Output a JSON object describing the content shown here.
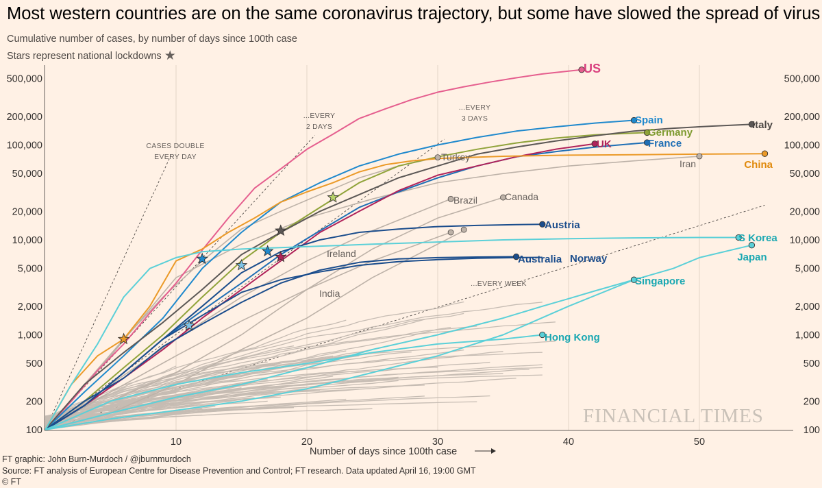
{
  "header": {
    "title": "Most western countries are on the same coronavirus trajectory, but some have slowed the spread of virus",
    "subtitle_line1": "Cumulative number of cases, by number of days since 100th case",
    "subtitle_line2": "Stars represent national lockdowns"
  },
  "footer": {
    "line1": "FT graphic: John Burn-Murdoch / @jburnmurdoch",
    "line2": "Source: FT analysis of European Centre for Disease Prevention and Control; FT research. Data updated April 16, 19:00 GMT",
    "line3": "© FT"
  },
  "watermark": "FINANCIAL TIMES",
  "chart_data": {
    "type": "line",
    "xlabel": "Number of days since 100th case",
    "ylabel": "",
    "xlim": [
      0,
      57
    ],
    "ylim": [
      100,
      700000
    ],
    "yscale": "log",
    "xticks": [
      10,
      20,
      30,
      40,
      50
    ],
    "yticks": [
      100,
      200,
      500,
      1000,
      2000,
      5000,
      10000,
      20000,
      50000,
      100000,
      200000,
      500000
    ],
    "ytick_labels": [
      "100",
      "200",
      "500",
      "1,000",
      "2,000",
      "5,000",
      "10,000",
      "20,000",
      "50,000",
      "100,000",
      "200,000",
      "500,000"
    ],
    "grid": "vertical",
    "reference_lines": [
      {
        "label_lines": [
          "CASES DOUBLE",
          "EVERY DAY"
        ],
        "doubling_days": 1
      },
      {
        "label_lines": [
          "...EVERY",
          "2 DAYS"
        ],
        "doubling_days": 2
      },
      {
        "label_lines": [
          "...EVERY",
          "3 DAYS"
        ],
        "doubling_days": 3
      },
      {
        "label_lines": [
          "...EVERY WEEK"
        ],
        "doubling_days": 7
      }
    ],
    "highlighted_series": [
      {
        "name": "US",
        "color": "#e55e8e",
        "label_color": "#d9417f",
        "x": [
          0,
          2,
          4,
          6,
          8,
          10,
          12,
          14,
          16,
          18,
          20,
          22,
          24,
          26,
          28,
          30,
          32,
          34,
          36,
          38,
          40,
          41
        ],
        "y": [
          100,
          200,
          420,
          800,
          1700,
          3500,
          7800,
          17000,
          35000,
          56000,
          90000,
          130000,
          190000,
          240000,
          300000,
          360000,
          410000,
          460000,
          510000,
          560000,
          600000,
          620000
        ]
      },
      {
        "name": "Spain",
        "color": "#1f89cd",
        "label_color": "#1f89cd",
        "x": [
          0,
          3,
          6,
          9,
          12,
          15,
          18,
          21,
          24,
          27,
          30,
          33,
          36,
          39,
          42,
          45
        ],
        "y": [
          100,
          250,
          600,
          1500,
          5000,
          12000,
          25000,
          40000,
          60000,
          80000,
          100000,
          120000,
          140000,
          155000,
          170000,
          182000
        ]
      },
      {
        "name": "Germany",
        "color": "#90a33a",
        "label_color": "#7d9a2f",
        "x": [
          0,
          3,
          6,
          9,
          12,
          15,
          18,
          21,
          24,
          27,
          30,
          33,
          36,
          39,
          42,
          46
        ],
        "y": [
          100,
          200,
          450,
          1000,
          2500,
          6000,
          12000,
          22000,
          40000,
          60000,
          75000,
          90000,
          105000,
          118000,
          128000,
          135000
        ]
      },
      {
        "name": "Italy",
        "color": "#5c5856",
        "label_color": "#4d4845",
        "x": [
          0,
          3,
          6,
          9,
          12,
          15,
          18,
          21,
          24,
          27,
          30,
          33,
          36,
          39,
          42,
          45,
          48,
          51,
          54
        ],
        "y": [
          100,
          300,
          650,
          1350,
          3000,
          7000,
          12000,
          20000,
          30000,
          45000,
          60000,
          80000,
          95000,
          110000,
          125000,
          140000,
          150000,
          158000,
          165000
        ]
      },
      {
        "name": "France",
        "color": "#1f6fb5",
        "label_color": "#1f6fb5",
        "x": [
          0,
          3,
          6,
          9,
          12,
          15,
          18,
          21,
          24,
          27,
          30,
          33,
          36,
          39,
          42,
          46
        ],
        "y": [
          100,
          180,
          400,
          900,
          1800,
          3500,
          7000,
          12500,
          22000,
          32000,
          45000,
          60000,
          75000,
          85000,
          95000,
          106000
        ]
      },
      {
        "name": "UK",
        "color": "#b0235a",
        "label_color": "#b0235a",
        "x": [
          0,
          3,
          6,
          9,
          12,
          15,
          18,
          21,
          24,
          27,
          30,
          33,
          36,
          39,
          42
        ],
        "y": [
          100,
          180,
          350,
          700,
          1500,
          3000,
          6000,
          12000,
          20000,
          33000,
          48000,
          60000,
          75000,
          90000,
          103000
        ]
      },
      {
        "name": "China",
        "color": "#eb9a28",
        "label_color": "#e08a0c",
        "x": [
          0,
          2,
          4,
          6,
          8,
          10,
          12,
          14,
          16,
          18,
          20,
          22,
          24,
          26,
          28,
          30,
          35,
          40,
          45,
          50,
          55
        ],
        "y": [
          100,
          300,
          600,
          900,
          2000,
          6000,
          8000,
          12000,
          17000,
          25000,
          32000,
          40000,
          52000,
          62000,
          68000,
          72000,
          76000,
          78000,
          79000,
          80000,
          81000
        ]
      },
      {
        "name": "Austria",
        "color": "#1b4d8c",
        "label_color": "#1b4d8c",
        "x": [
          0,
          3,
          6,
          9,
          12,
          15,
          18,
          21,
          24,
          27,
          30,
          33,
          36,
          38
        ],
        "y": [
          100,
          180,
          400,
          900,
          2000,
          4500,
          7500,
          10000,
          12000,
          13000,
          13800,
          14200,
          14500,
          14600
        ]
      },
      {
        "name": "Australia",
        "color": "#1b4d8c",
        "label_color": "#1b4d8c",
        "x": [
          0,
          3,
          6,
          9,
          12,
          15,
          18,
          21,
          24,
          27,
          30,
          33,
          36
        ],
        "y": [
          100,
          200,
          350,
          750,
          1300,
          2200,
          3500,
          4800,
          5800,
          6300,
          6500,
          6600,
          6650
        ]
      },
      {
        "name": "Norway",
        "color": "#1b4d8c",
        "label_color": "#1b4d8c",
        "x": [
          0,
          3,
          6,
          9,
          12,
          15,
          18,
          21,
          24,
          27,
          30,
          33,
          36,
          38
        ],
        "y": [
          100,
          180,
          400,
          900,
          1600,
          2800,
          3800,
          4600,
          5400,
          5900,
          6200,
          6400,
          6500,
          6550
        ]
      },
      {
        "name": "S Korea",
        "color": "#5bd0d8",
        "label_color": "#1ba8b2",
        "x": [
          0,
          2,
          4,
          6,
          8,
          10,
          12,
          15,
          18,
          21,
          25,
          30,
          35,
          40,
          45,
          50,
          53
        ],
        "y": [
          100,
          300,
          800,
          2500,
          5000,
          6500,
          7500,
          8000,
          8300,
          8600,
          9000,
          9500,
          10000,
          10300,
          10500,
          10600,
          10600
        ]
      },
      {
        "name": "Japan",
        "color": "#5bd0d8",
        "label_color": "#1ba8b2",
        "x": [
          0,
          5,
          10,
          15,
          20,
          25,
          30,
          35,
          40,
          45,
          48,
          50,
          54
        ],
        "y": [
          100,
          130,
          160,
          200,
          270,
          400,
          600,
          1000,
          2000,
          3800,
          5000,
          6500,
          8800
        ]
      },
      {
        "name": "Singapore",
        "color": "#5bd0d8",
        "label_color": "#1ba8b2",
        "x": [
          0,
          5,
          10,
          15,
          20,
          25,
          30,
          35,
          38,
          40,
          42,
          45
        ],
        "y": [
          100,
          150,
          220,
          300,
          450,
          700,
          1000,
          1500,
          2000,
          2400,
          2900,
          3800
        ]
      },
      {
        "name": "Hong Kong",
        "color": "#5bd0d8",
        "label_color": "#1ba8b2",
        "x": [
          0,
          5,
          10,
          15,
          20,
          25,
          30,
          35,
          38
        ],
        "y": [
          100,
          200,
          300,
          400,
          500,
          650,
          800,
          900,
          1000
        ]
      }
    ],
    "labeled_gray_series": [
      {
        "name": "Turkey",
        "x": [
          0,
          3,
          6,
          9,
          12,
          15,
          18,
          21,
          24,
          27,
          30
        ],
        "y": [
          100,
          300,
          900,
          2500,
          6000,
          13000,
          20000,
          30000,
          45000,
          60000,
          74000
        ]
      },
      {
        "name": "Iran",
        "x": [
          0,
          5,
          10,
          15,
          20,
          25,
          30,
          35,
          40,
          45,
          50
        ],
        "y": [
          100,
          600,
          4000,
          9000,
          17000,
          27000,
          40000,
          50000,
          60000,
          68000,
          76000
        ]
      },
      {
        "name": "Brazil",
        "x": [
          0,
          5,
          10,
          15,
          20,
          25,
          31
        ],
        "y": [
          100,
          300,
          900,
          2500,
          6000,
          12500,
          27000
        ]
      },
      {
        "name": "Canada",
        "x": [
          0,
          5,
          10,
          15,
          20,
          25,
          30,
          35
        ],
        "y": [
          100,
          200,
          400,
          1000,
          3000,
          8000,
          17000,
          28000
        ]
      },
      {
        "name": "Ireland",
        "x": [
          0,
          5,
          10,
          15,
          20,
          25,
          31
        ],
        "y": [
          100,
          250,
          600,
          1400,
          3000,
          6000,
          12000
        ]
      },
      {
        "name": "India",
        "x": [
          0,
          5,
          10,
          15,
          20,
          25,
          32
        ],
        "y": [
          100,
          150,
          300,
          700,
          1500,
          4000,
          12500
        ]
      }
    ],
    "lockdowns": [
      {
        "x": 6,
        "y": 900,
        "color": "#eb9a28"
      },
      {
        "x": 11,
        "y": 1250,
        "color": "#7fc3e6"
      },
      {
        "x": 12,
        "y": 6300,
        "color": "#1f89cd"
      },
      {
        "x": 15,
        "y": 5400,
        "color": "#7fc3e6"
      },
      {
        "x": 17,
        "y": 7600,
        "color": "#1f89cd"
      },
      {
        "x": 18,
        "y": 6600,
        "color": "#b0235a"
      },
      {
        "x": 18,
        "y": 12500,
        "color": "#5c5856"
      },
      {
        "x": 22,
        "y": 28000,
        "color": "#b8d36a"
      }
    ]
  }
}
